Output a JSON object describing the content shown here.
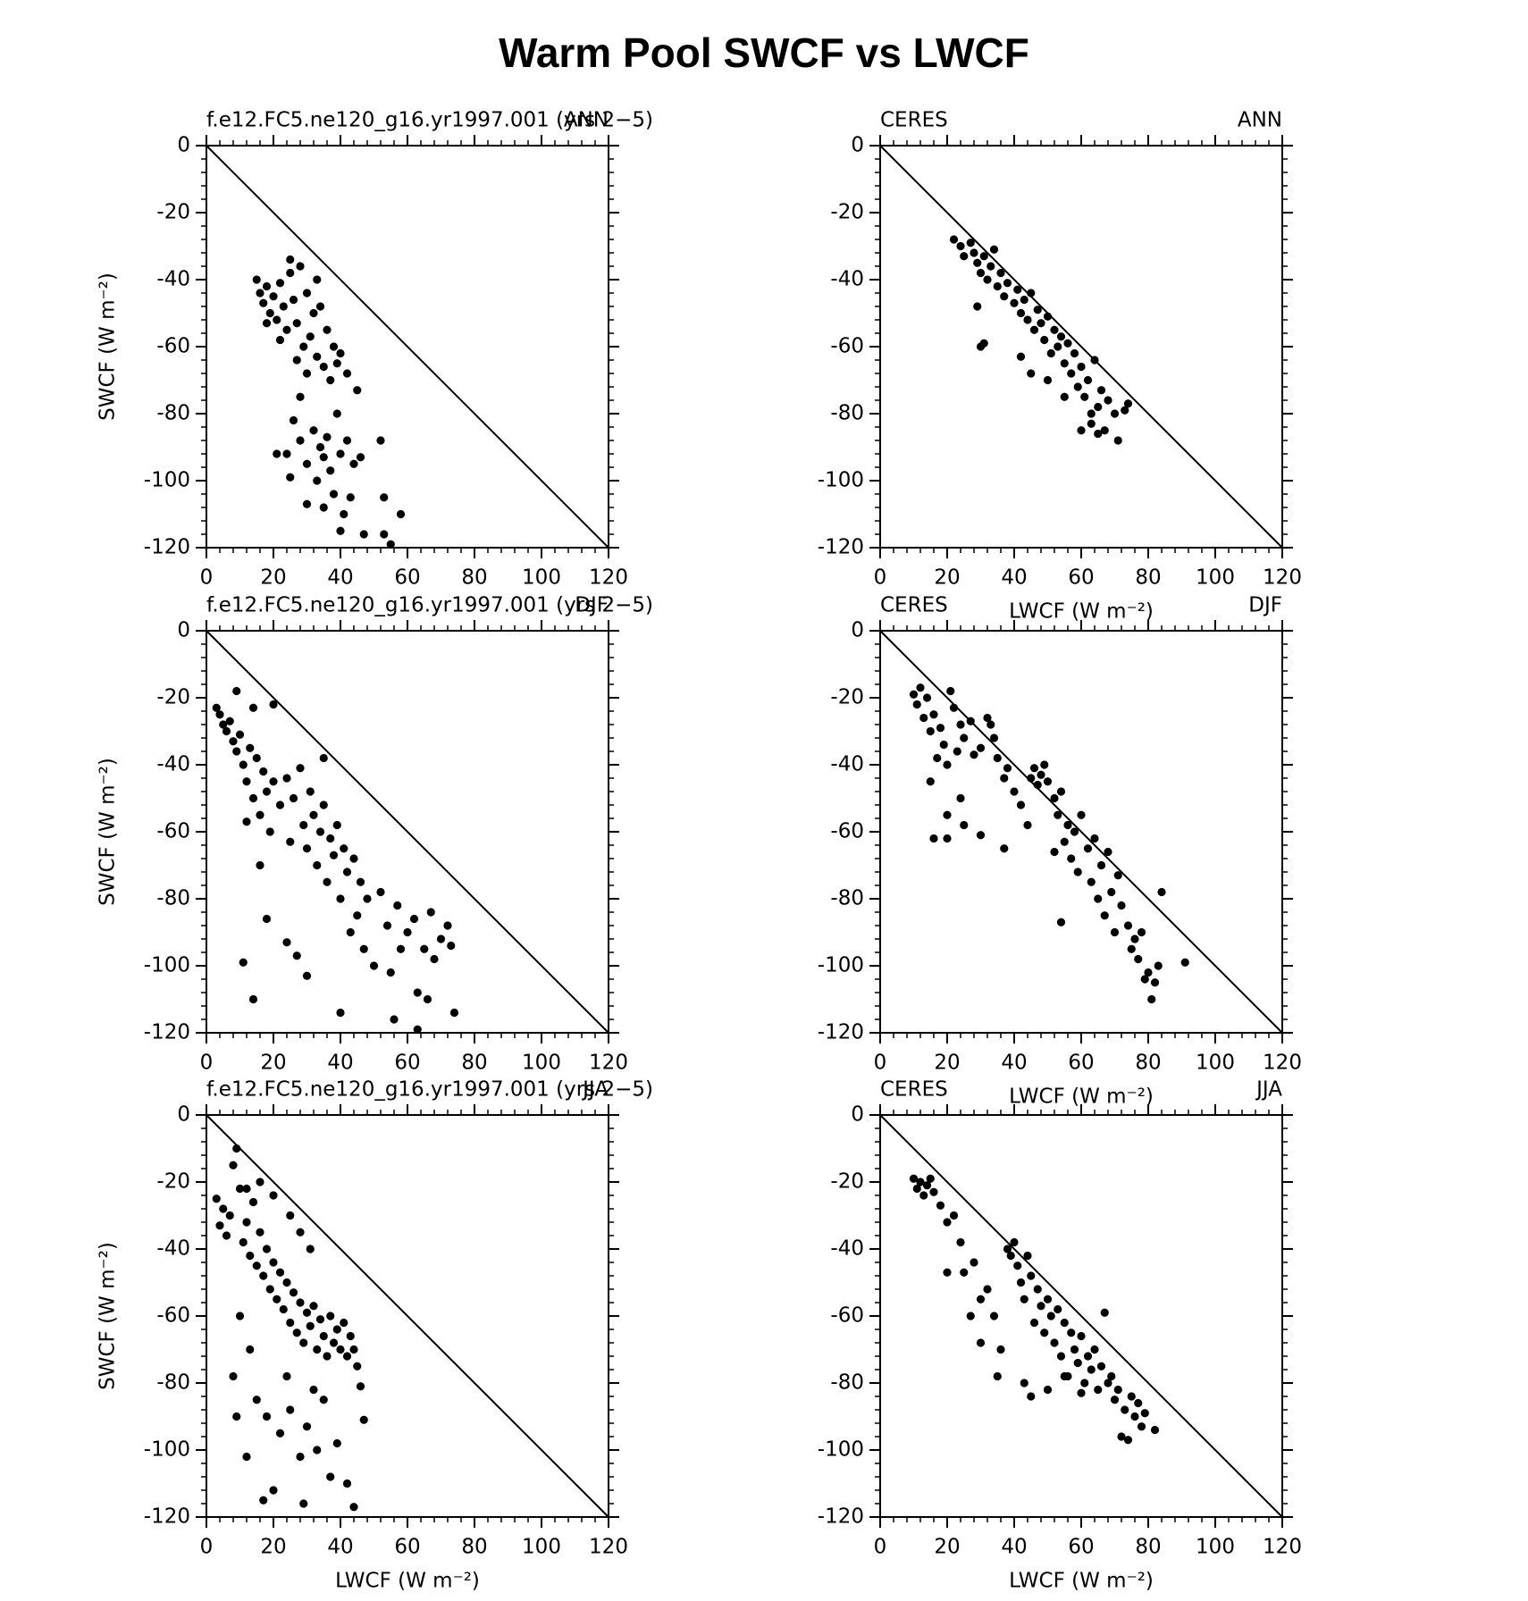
{
  "title": "Warm Pool SWCF vs LWCF",
  "chart_data": [
    {
      "type": "scatter",
      "left_title": "f.e12.FC5.ne120_g16.yr1997.001 (yrs 2−5)",
      "right_title": "ANN",
      "y_label": "SWCF (W m⁻²)",
      "xlim": [
        0,
        120
      ],
      "ylim": [
        -120,
        0
      ],
      "xticks": [
        0,
        20,
        40,
        60,
        80,
        100,
        120
      ],
      "yticks": [
        0,
        -20,
        -40,
        -60,
        -80,
        -100,
        -120
      ],
      "color": "#000000",
      "reference_line": {
        "x": [
          0,
          120
        ],
        "y": [
          0,
          -120
        ]
      },
      "x": [
        15,
        16,
        17,
        18,
        19,
        20,
        21,
        22,
        23,
        24,
        25,
        26,
        27,
        28,
        29,
        30,
        31,
        32,
        33,
        34,
        35,
        36,
        37,
        38,
        39,
        40,
        42,
        45,
        22,
        18,
        27,
        30,
        25,
        33,
        28,
        24,
        26,
        28,
        30,
        32,
        33,
        34,
        35,
        36,
        37,
        38,
        39,
        40,
        41,
        42,
        43,
        44,
        46,
        30,
        35,
        40,
        52,
        53,
        58,
        53,
        55,
        47,
        21,
        25
      ],
      "y": [
        -40,
        -44,
        -47,
        -42,
        -50,
        -45,
        -52,
        -41,
        -48,
        -55,
        -38,
        -46,
        -53,
        -36,
        -60,
        -44,
        -57,
        -50,
        -63,
        -48,
        -66,
        -55,
        -70,
        -60,
        -65,
        -62,
        -68,
        -73,
        -58,
        -53,
        -64,
        -68,
        -34,
        -40,
        -75,
        -92,
        -82,
        -88,
        -95,
        -85,
        -100,
        -90,
        -93,
        -87,
        -97,
        -104,
        -80,
        -92,
        -110,
        -88,
        -105,
        -95,
        -93,
        -107,
        -108,
        -115,
        -88,
        -105,
        -110,
        -116,
        -119,
        -116,
        -92,
        -99
      ]
    },
    {
      "type": "scatter",
      "left_title": "CERES",
      "right_title": "ANN",
      "x_label": "LWCF (W m⁻²)",
      "xlim": [
        0,
        120
      ],
      "ylim": [
        -120,
        0
      ],
      "xticks": [
        0,
        20,
        40,
        60,
        80,
        100,
        120
      ],
      "yticks": [
        0,
        -20,
        -40,
        -60,
        -80,
        -100,
        -120
      ],
      "color": "#000000",
      "reference_line": {
        "x": [
          0,
          120
        ],
        "y": [
          0,
          -120
        ]
      },
      "x": [
        22,
        24,
        25,
        27,
        28,
        29,
        30,
        31,
        32,
        33,
        34,
        35,
        36,
        37,
        38,
        40,
        41,
        42,
        43,
        44,
        45,
        46,
        47,
        48,
        49,
        50,
        51,
        52,
        53,
        54,
        55,
        56,
        57,
        58,
        59,
        60,
        61,
        62,
        63,
        64,
        65,
        66,
        67,
        68,
        70,
        71,
        73,
        74,
        29,
        30,
        31,
        42,
        45,
        50,
        55,
        60,
        63,
        65
      ],
      "y": [
        -28,
        -30,
        -33,
        -29,
        -32,
        -35,
        -38,
        -33,
        -40,
        -36,
        -31,
        -42,
        -38,
        -45,
        -41,
        -47,
        -43,
        -50,
        -46,
        -52,
        -44,
        -55,
        -49,
        -53,
        -58,
        -51,
        -62,
        -55,
        -60,
        -57,
        -65,
        -59,
        -68,
        -62,
        -72,
        -66,
        -75,
        -70,
        -80,
        -64,
        -78,
        -73,
        -85,
        -76,
        -80,
        -88,
        -79,
        -77,
        -48,
        -60,
        -59,
        -63,
        -68,
        -70,
        -75,
        -85,
        -83,
        -86
      ]
    },
    {
      "type": "scatter",
      "left_title": "f.e12.FC5.ne120_g16.yr1997.001 (yrs 2−5)",
      "right_title": "DJF",
      "y_label": "SWCF (W m⁻²)",
      "xlim": [
        0,
        120
      ],
      "ylim": [
        -120,
        0
      ],
      "xticks": [
        0,
        20,
        40,
        60,
        80,
        100,
        120
      ],
      "yticks": [
        0,
        -20,
        -40,
        -60,
        -80,
        -100,
        -120
      ],
      "color": "#000000",
      "reference_line": {
        "x": [
          0,
          120
        ],
        "y": [
          0,
          -120
        ]
      },
      "x": [
        3,
        4,
        5,
        6,
        7,
        8,
        9,
        10,
        11,
        12,
        13,
        14,
        15,
        16,
        17,
        18,
        19,
        20,
        22,
        24,
        25,
        26,
        28,
        29,
        30,
        31,
        32,
        33,
        34,
        35,
        36,
        37,
        38,
        39,
        40,
        41,
        42,
        43,
        44,
        45,
        46,
        47,
        48,
        50,
        52,
        54,
        55,
        57,
        58,
        60,
        62,
        63,
        65,
        67,
        68,
        70,
        72,
        73,
        74,
        66,
        63,
        56,
        40,
        11,
        14,
        30,
        27,
        24,
        9,
        14,
        20,
        35,
        18,
        16,
        12
      ],
      "y": [
        -23,
        -25,
        -28,
        -30,
        -27,
        -33,
        -36,
        -31,
        -40,
        -45,
        -35,
        -50,
        -38,
        -55,
        -42,
        -48,
        -60,
        -45,
        -52,
        -44,
        -63,
        -50,
        -41,
        -58,
        -65,
        -48,
        -55,
        -70,
        -60,
        -52,
        -75,
        -62,
        -67,
        -58,
        -80,
        -65,
        -72,
        -90,
        -68,
        -85,
        -75,
        -95,
        -80,
        -100,
        -78,
        -88,
        -102,
        -82,
        -95,
        -90,
        -86,
        -108,
        -95,
        -84,
        -98,
        -92,
        -88,
        -94,
        -114,
        -110,
        -119,
        -116,
        -114,
        -99,
        -110,
        -103,
        -97,
        -93,
        -18,
        -23,
        -22,
        -38,
        -86,
        -70,
        -57
      ]
    },
    {
      "type": "scatter",
      "left_title": "CERES",
      "right_title": "DJF",
      "x_label": "LWCF (W m⁻²)",
      "xlim": [
        0,
        120
      ],
      "ylim": [
        -120,
        0
      ],
      "xticks": [
        0,
        20,
        40,
        60,
        80,
        100,
        120
      ],
      "yticks": [
        0,
        -20,
        -40,
        -60,
        -80,
        -100,
        -120
      ],
      "color": "#000000",
      "reference_line": {
        "x": [
          0,
          120
        ],
        "y": [
          0,
          -120
        ]
      },
      "x": [
        10,
        11,
        12,
        13,
        14,
        15,
        16,
        17,
        18,
        19,
        20,
        21,
        22,
        23,
        24,
        25,
        27,
        28,
        30,
        32,
        33,
        34,
        35,
        37,
        38,
        40,
        42,
        44,
        45,
        46,
        47,
        48,
        49,
        50,
        52,
        53,
        54,
        55,
        56,
        57,
        58,
        59,
        60,
        62,
        63,
        64,
        65,
        66,
        67,
        68,
        69,
        70,
        71,
        72,
        74,
        75,
        76,
        77,
        78,
        79,
        80,
        81,
        82,
        83,
        84,
        91,
        15,
        16,
        20,
        24,
        25,
        30,
        37,
        52,
        54,
        20
      ],
      "y": [
        -19,
        -22,
        -17,
        -26,
        -20,
        -30,
        -25,
        -38,
        -29,
        -34,
        -40,
        -18,
        -23,
        -36,
        -28,
        -32,
        -27,
        -37,
        -35,
        -26,
        -28,
        -32,
        -38,
        -44,
        -41,
        -48,
        -52,
        -58,
        -44,
        -41,
        -46,
        -43,
        -40,
        -45,
        -50,
        -55,
        -48,
        -63,
        -58,
        -68,
        -60,
        -72,
        -55,
        -65,
        -75,
        -62,
        -80,
        -70,
        -85,
        -66,
        -78,
        -90,
        -73,
        -82,
        -88,
        -95,
        -92,
        -98,
        -90,
        -104,
        -102,
        -110,
        -105,
        -100,
        -78,
        -99,
        -45,
        -62,
        -62,
        -50,
        -58,
        -61,
        -65,
        -66,
        -87,
        -55
      ]
    },
    {
      "type": "scatter",
      "left_title": "f.e12.FC5.ne120_g16.yr1997.001 (yrs 2−5)",
      "right_title": "JJA",
      "x_label": "LWCF (W m⁻²)",
      "y_label": "SWCF (W m⁻²)",
      "xlim": [
        0,
        120
      ],
      "ylim": [
        -120,
        0
      ],
      "xticks": [
        0,
        20,
        40,
        60,
        80,
        100,
        120
      ],
      "yticks": [
        0,
        -20,
        -40,
        -60,
        -80,
        -100,
        -120
      ],
      "color": "#000000",
      "reference_line": {
        "x": [
          0,
          120
        ],
        "y": [
          0,
          -120
        ]
      },
      "x": [
        3,
        4,
        5,
        6,
        7,
        8,
        9,
        10,
        11,
        12,
        13,
        14,
        15,
        16,
        17,
        18,
        19,
        20,
        21,
        22,
        23,
        24,
        25,
        26,
        27,
        28,
        29,
        30,
        31,
        32,
        33,
        34,
        35,
        36,
        37,
        38,
        39,
        40,
        41,
        42,
        43,
        44,
        45,
        46,
        47,
        12,
        16,
        20,
        25,
        28,
        31,
        10,
        13,
        8,
        15,
        18,
        22,
        25,
        28,
        30,
        33,
        35,
        37,
        39,
        42,
        44,
        20,
        12,
        17,
        29,
        24,
        32,
        9
      ],
      "y": [
        -25,
        -33,
        -28,
        -36,
        -30,
        -15,
        -10,
        -22,
        -38,
        -32,
        -42,
        -26,
        -45,
        -35,
        -48,
        -40,
        -52,
        -44,
        -55,
        -47,
        -58,
        -50,
        -62,
        -53,
        -65,
        -56,
        -68,
        -59,
        -63,
        -57,
        -70,
        -61,
        -66,
        -72,
        -60,
        -68,
        -64,
        -70,
        -62,
        -72,
        -66,
        -70,
        -75,
        -81,
        -91,
        -22,
        -20,
        -24,
        -30,
        -35,
        -40,
        -60,
        -70,
        -78,
        -85,
        -90,
        -95,
        -88,
        -102,
        -93,
        -100,
        -85,
        -108,
        -98,
        -110,
        -117,
        -112,
        -102,
        -115,
        -116,
        -78,
        -82,
        -90
      ]
    },
    {
      "type": "scatter",
      "left_title": "CERES",
      "right_title": "JJA",
      "x_label": "LWCF (W m⁻²)",
      "xlim": [
        0,
        120
      ],
      "ylim": [
        -120,
        0
      ],
      "xticks": [
        0,
        20,
        40,
        60,
        80,
        100,
        120
      ],
      "yticks": [
        0,
        -20,
        -40,
        -60,
        -80,
        -100,
        -120
      ],
      "color": "#000000",
      "reference_line": {
        "x": [
          0,
          120
        ],
        "y": [
          0,
          -120
        ]
      },
      "x": [
        10,
        11,
        12,
        13,
        14,
        15,
        16,
        18,
        20,
        22,
        24,
        25,
        27,
        28,
        30,
        32,
        34,
        36,
        38,
        39,
        40,
        41,
        42,
        43,
        44,
        45,
        46,
        47,
        48,
        49,
        50,
        51,
        52,
        53,
        54,
        55,
        56,
        57,
        58,
        59,
        60,
        61,
        62,
        63,
        64,
        65,
        66,
        67,
        68,
        69,
        70,
        71,
        72,
        73,
        74,
        75,
        76,
        77,
        78,
        79,
        82,
        43,
        45,
        50,
        55,
        60,
        35,
        30,
        20
      ],
      "y": [
        -19,
        -22,
        -20,
        -24,
        -21,
        -19,
        -23,
        -27,
        -32,
        -30,
        -38,
        -47,
        -60,
        -44,
        -55,
        -52,
        -60,
        -70,
        -40,
        -42,
        -38,
        -45,
        -50,
        -55,
        -42,
        -48,
        -62,
        -52,
        -57,
        -65,
        -55,
        -60,
        -68,
        -58,
        -72,
        -62,
        -78,
        -65,
        -70,
        -74,
        -66,
        -80,
        -72,
        -76,
        -70,
        -82,
        -75,
        -59,
        -80,
        -78,
        -85,
        -82,
        -96,
        -88,
        -97,
        -84,
        -90,
        -86,
        -93,
        -89,
        -94,
        -80,
        -84,
        -82,
        -78,
        -83,
        -78,
        -68,
        -47
      ]
    }
  ]
}
